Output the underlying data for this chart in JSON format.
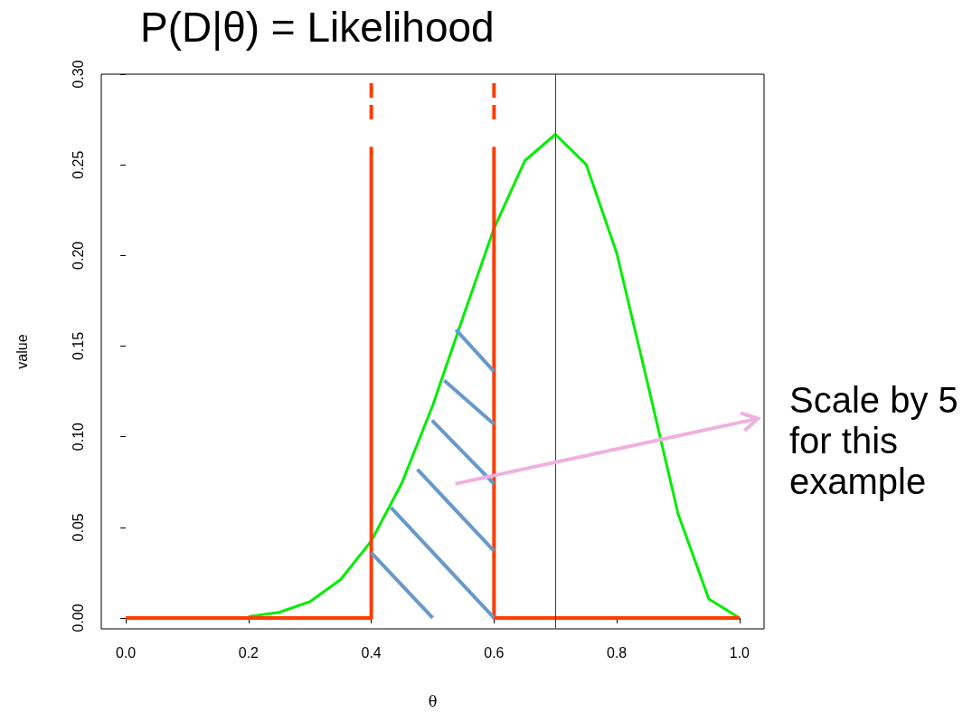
{
  "chart_data": {
    "type": "line",
    "title": "P(D|θ) = Likelihood",
    "xlabel": "θ",
    "ylabel": "value",
    "xlim": [
      -0.04,
      1.04
    ],
    "ylim": [
      -0.006,
      0.3
    ],
    "xticks": [
      {
        "value": 0,
        "label": "0.0"
      },
      {
        "value": 0.2,
        "label": "0.2"
      },
      {
        "value": 0.4,
        "label": "0.4"
      },
      {
        "value": 0.6,
        "label": "0.6"
      },
      {
        "value": 0.8,
        "label": "0.8"
      },
      {
        "value": 1,
        "label": "1.0"
      }
    ],
    "yticks": [
      {
        "value": 0,
        "label": "0.00"
      },
      {
        "value": 0.05,
        "label": "0.05"
      },
      {
        "value": 0.1,
        "label": "0.10"
      },
      {
        "value": 0.15,
        "label": "0.15"
      },
      {
        "value": 0.2,
        "label": "0.20"
      },
      {
        "value": 0.25,
        "label": "0.25"
      },
      {
        "value": 0.3,
        "label": "0.30"
      }
    ],
    "marker": "none",
    "grid": false,
    "series": [
      {
        "color": "#00ee00",
        "x": [
          0.2,
          0.25,
          0.3,
          0.35,
          0.4,
          0.45,
          0.5,
          0.55,
          0.6,
          0.65,
          0.7,
          0.75,
          0.8,
          0.85,
          0.9,
          0.95,
          1.0
        ],
        "values": [
          0.0008,
          0.0031,
          0.009,
          0.0212,
          0.0425,
          0.0746,
          0.1172,
          0.1665,
          0.215,
          0.2522,
          0.2668,
          0.2503,
          0.2013,
          0.1298,
          0.0574,
          0.0105,
          0
        ]
      },
      {
        "color": "#ff3d00",
        "x": [
          0,
          0.4,
          0.4,
          0.5,
          0.6,
          0.6,
          1.0
        ],
        "values": [
          0,
          0,
          0.26,
          null,
          0.26,
          0,
          0
        ]
      },
      {
        "color": "#ff3d00",
        "line_style": "dashed",
        "x": [
          0.4,
          0.4,
          0.5,
          0.6,
          0.6
        ],
        "values": [
          0.275,
          0.295,
          null,
          0.275,
          0.297
        ]
      },
      {
        "color": "#6699cc",
        "x": [
          0.4,
          0.5,
          0.46,
          0.432,
          0.6,
          0.52,
          0.475,
          0.6,
          0.55,
          0.499,
          0.6,
          0.56,
          0.519,
          0.6,
          0.57,
          0.538,
          0.6
        ],
        "values": [
          0.036,
          0,
          null,
          0.061,
          0,
          null,
          0.082,
          0.037,
          null,
          0.109,
          0.074,
          null,
          0.131,
          0.107,
          null,
          0.159,
          0.136
        ]
      }
    ],
    "ref_lines": [
      {
        "axis": "x",
        "value": 0.7,
        "color": "#cc0000"
      }
    ],
    "annotations": [
      "Scale by 5 for this example"
    ]
  }
}
